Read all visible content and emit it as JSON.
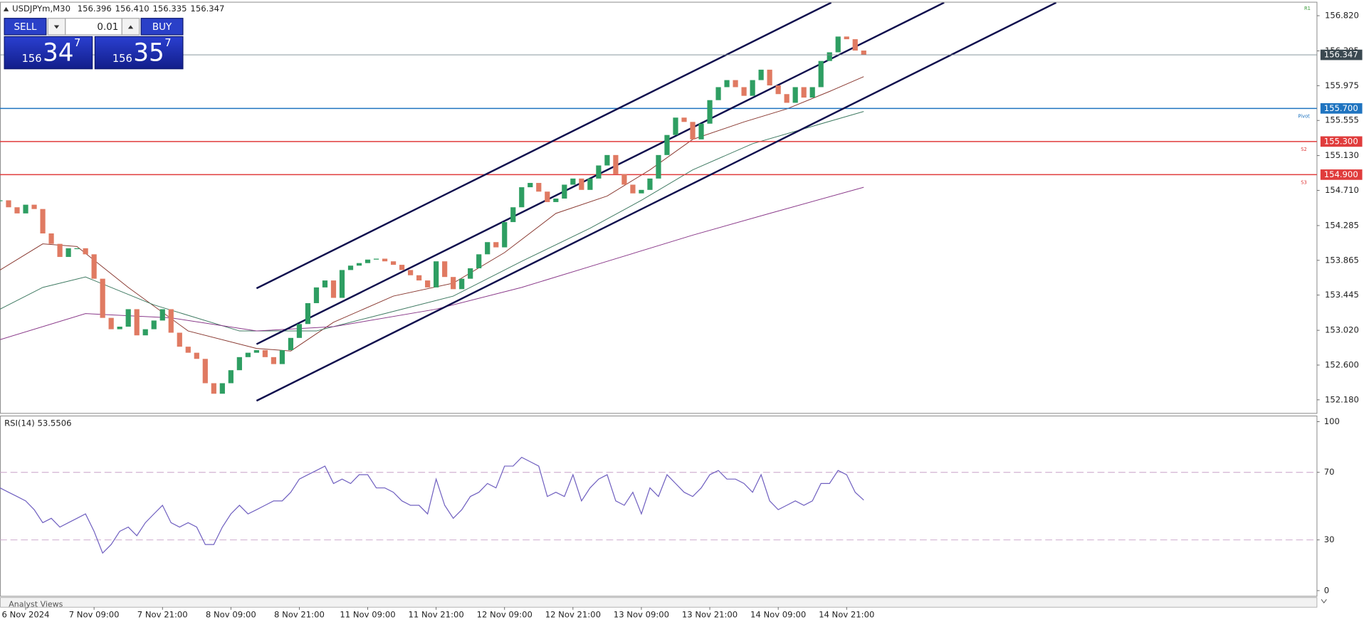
{
  "chart_data": [
    {
      "type": "candlestick",
      "title": "USDJPYm,M30",
      "quote": [
        "156.396",
        "156.410",
        "156.335",
        "156.347"
      ],
      "values": [
        154.59,
        154.506,
        154.432,
        154.537,
        154.485,
        154.19,
        154.064,
        153.906,
        154.011,
        154.011,
        153.938,
        153.643,
        153.17,
        153.033,
        153.064,
        153.275,
        152.959,
        153.033,
        153.138,
        153.275,
        152.991,
        152.822,
        152.749,
        152.675,
        152.381,
        152.254,
        152.381,
        152.538,
        152.696,
        152.749,
        152.78,
        152.696,
        152.612,
        152.78,
        152.928,
        153.096,
        153.348,
        153.538,
        153.622,
        153.412,
        153.748,
        153.801,
        153.832,
        153.874,
        153.885,
        153.853,
        153.811,
        153.748,
        153.685,
        153.622,
        153.538,
        153.853,
        153.664,
        153.517,
        153.643,
        153.769,
        153.938,
        154.085,
        154.022,
        154.327,
        154.506,
        154.748,
        154.8,
        154.695,
        154.569,
        154.611,
        154.779,
        154.853,
        154.716,
        154.853,
        155.011,
        155.137,
        154.905,
        154.779,
        154.674,
        154.716,
        154.853,
        155.137,
        155.379,
        155.589,
        155.537,
        155.326,
        155.516,
        155.8,
        155.957,
        156.042,
        155.957,
        155.852,
        156.042,
        156.168,
        155.978,
        155.873,
        155.768,
        155.957,
        155.831,
        155.957,
        156.273,
        156.378,
        156.568,
        156.536,
        156.399,
        156.347
      ],
      "up_color": "#2e9e62",
      "down_color": "#e07a62",
      "xlim": [
        0,
        154
      ],
      "xticks": [
        {
          "value": 3,
          "label": "6 Nov 2024"
        },
        {
          "value": 11,
          "label": "7 Nov 09:00"
        },
        {
          "value": 19,
          "label": "7 Nov 21:00"
        },
        {
          "value": 27,
          "label": "8 Nov 09:00"
        },
        {
          "value": 35,
          "label": "8 Nov 21:00"
        },
        {
          "value": 43,
          "label": "11 Nov 09:00"
        },
        {
          "value": 51,
          "label": "11 Nov 21:00"
        },
        {
          "value": 59,
          "label": "12 Nov 09:00"
        },
        {
          "value": 67,
          "label": "12 Nov 21:00"
        },
        {
          "value": 75,
          "label": "13 Nov 09:00"
        },
        {
          "value": 83,
          "label": "13 Nov 21:00"
        },
        {
          "value": 91,
          "label": "14 Nov 09:00"
        },
        {
          "value": 99,
          "label": "14 Nov 21:00"
        }
      ],
      "ylim": [
        152.022,
        156.978
      ],
      "yticks": [
        {
          "value": 156.82,
          "label": "156.820"
        },
        {
          "value": 156.395,
          "label": "156.395"
        },
        {
          "value": 155.975,
          "label": "155.975"
        },
        {
          "value": 155.555,
          "label": "155.555"
        },
        {
          "value": 155.13,
          "label": "155.130"
        },
        {
          "value": 154.71,
          "label": "154.710"
        },
        {
          "value": 154.285,
          "label": "154.285"
        },
        {
          "value": 153.865,
          "label": "153.865"
        },
        {
          "value": 153.445,
          "label": "153.445"
        },
        {
          "value": 153.02,
          "label": "153.020"
        },
        {
          "value": 152.6,
          "label": "152.600"
        },
        {
          "value": 152.18,
          "label": "152.180"
        }
      ],
      "grid": false,
      "overlays": [
        {
          "color": "#8a3a32",
          "x": [
            0,
            5,
            9,
            15,
            22,
            30,
            34,
            39,
            46,
            53,
            59,
            65,
            71,
            76,
            81,
            87,
            92,
            97,
            101
          ],
          "values": [
            153.748,
            154.064,
            154.032,
            153.538,
            153.012,
            152.801,
            152.77,
            153.117,
            153.433,
            153.59,
            153.959,
            154.432,
            154.642,
            154.958,
            155.326,
            155.537,
            155.694,
            155.905,
            156.084
          ]
        },
        {
          "color": "#3f7a62",
          "x": [
            0,
            5,
            10,
            18,
            28,
            37,
            45,
            53,
            61,
            69,
            75,
            81,
            88,
            95,
            101
          ],
          "values": [
            153.275,
            153.538,
            153.664,
            153.327,
            153.012,
            153.012,
            153.222,
            153.433,
            153.853,
            154.253,
            154.59,
            154.958,
            155.274,
            155.484,
            155.663
          ]
        },
        {
          "color": "#8a3a8a",
          "x": [
            0,
            10,
            20,
            30,
            39,
            51,
            61,
            71,
            81,
            90,
            101
          ],
          "values": [
            152.907,
            153.222,
            153.17,
            153.012,
            153.064,
            153.275,
            153.538,
            153.853,
            154.169,
            154.432,
            154.748
          ]
        }
      ],
      "trend_color": "#0d0d4d",
      "trend_lines": [
        {
          "x": [
            30,
            97.2
          ],
          "values": [
            153.527,
            156.978
          ]
        },
        {
          "x": [
            30,
            110.4
          ],
          "values": [
            152.853,
            156.978
          ]
        },
        {
          "x": [
            30,
            123.5
          ],
          "values": [
            152.169,
            156.978
          ]
        }
      ],
      "levels": [
        {
          "value": 155.7,
          "label": "155.700",
          "tag": "Pivot",
          "color": "#1f74c0"
        },
        {
          "value": 155.3,
          "label": "155.300",
          "tag": "S2",
          "color": "#e03c3c"
        },
        {
          "value": 154.9,
          "label": "154.900",
          "tag": "S3",
          "color": "#e03c3c"
        }
      ],
      "top_tag": "R1",
      "last": {
        "value": 156.347,
        "label": "156.347",
        "color": "#3a4850"
      }
    },
    {
      "type": "line",
      "title": "RSI(14) 53.5506",
      "color": "#7060c0",
      "values": [
        60.8,
        58.2,
        55.7,
        53.1,
        47.9,
        40.2,
        42.8,
        37.6,
        40.2,
        42.8,
        45.4,
        35.1,
        22.2,
        27.3,
        35.1,
        37.6,
        32.5,
        40.2,
        45.4,
        50.5,
        40.2,
        37.6,
        40.2,
        37.6,
        27.3,
        27.3,
        37.6,
        45.4,
        50.5,
        45.4,
        47.9,
        50.5,
        53.1,
        53.1,
        58.2,
        66.0,
        68.6,
        71.1,
        73.7,
        63.4,
        66.0,
        63.4,
        68.6,
        68.6,
        60.8,
        60.8,
        58.2,
        53.1,
        50.5,
        50.5,
        45.4,
        66.0,
        50.5,
        42.8,
        47.9,
        55.7,
        58.2,
        63.4,
        60.8,
        73.7,
        73.7,
        78.9,
        76.3,
        73.7,
        55.7,
        58.2,
        55.7,
        68.6,
        53.1,
        60.8,
        66.0,
        68.6,
        53.1,
        50.5,
        58.2,
        45.4,
        60.8,
        55.7,
        68.6,
        63.4,
        58.2,
        55.7,
        60.8,
        68.6,
        71.1,
        66.0,
        66.0,
        63.4,
        58.2,
        68.6,
        53.1,
        47.9,
        50.5,
        53.1,
        50.5,
        53.1,
        63.4,
        63.4,
        71.1,
        68.6,
        58.2,
        53.6
      ],
      "ylim": [
        -3.1,
        103.1
      ],
      "yticks": [
        0,
        30,
        70,
        100
      ],
      "levels": [
        30,
        70
      ],
      "level_color": "#c8a0c8"
    }
  ],
  "trade_panel": {
    "sell": "SELL",
    "buy": "BUY",
    "lot": "0.01",
    "bid": [
      "156",
      "34",
      "7"
    ],
    "ask": [
      "156",
      "35",
      "7"
    ]
  },
  "footer": {
    "tab": "Analyst Views"
  }
}
